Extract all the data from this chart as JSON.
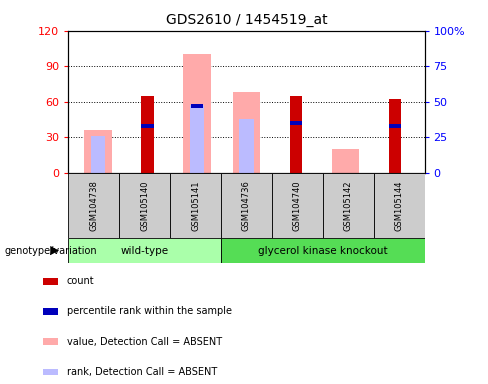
{
  "title": "GDS2610 / 1454519_at",
  "samples": [
    "GSM104738",
    "GSM105140",
    "GSM105141",
    "GSM104736",
    "GSM104740",
    "GSM105142",
    "GSM105144"
  ],
  "wt_count": 3,
  "gk_count": 4,
  "count_values": [
    0,
    65,
    0,
    0,
    65,
    0,
    62
  ],
  "percentile_rank": [
    0,
    33,
    47,
    0,
    35,
    0,
    33
  ],
  "absent_value": [
    36,
    0,
    100,
    68,
    0,
    20,
    0
  ],
  "absent_rank": [
    26,
    0,
    48,
    38,
    0,
    0,
    0
  ],
  "left_ylim": [
    0,
    120
  ],
  "right_ylim": [
    0,
    100
  ],
  "left_yticks": [
    0,
    30,
    60,
    90,
    120
  ],
  "right_yticks": [
    0,
    25,
    50,
    75,
    100
  ],
  "right_yticklabels": [
    "0",
    "25",
    "50",
    "75",
    "100%"
  ],
  "color_count": "#cc0000",
  "color_rank": "#0000bb",
  "color_absent_value": "#ffaaaa",
  "color_absent_rank": "#bbbbff",
  "color_wt": "#aaffaa",
  "color_gk": "#55dd55",
  "color_cell_bg": "#cccccc",
  "fig_width": 4.88,
  "fig_height": 3.84
}
